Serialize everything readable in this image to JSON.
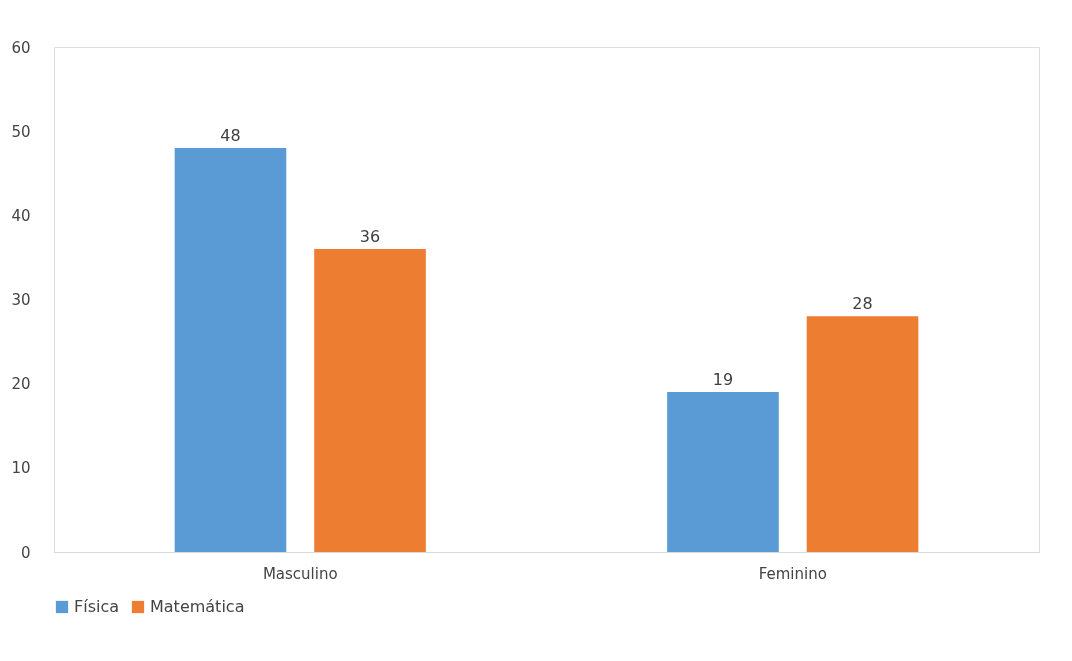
{
  "chart_data": {
    "type": "bar",
    "categories": [
      "Masculino",
      "Feminino"
    ],
    "series": [
      {
        "name": "Física",
        "color": "#5b9bd5",
        "values": [
          48,
          19
        ]
      },
      {
        "name": "Matemática",
        "color": "#ed7d31",
        "values": [
          36,
          28
        ]
      }
    ],
    "ylim": [
      0,
      60
    ],
    "yticks": [
      0,
      10,
      20,
      30,
      40,
      50,
      60
    ],
    "grid": false,
    "legend": "bottom",
    "data_labels": true
  }
}
